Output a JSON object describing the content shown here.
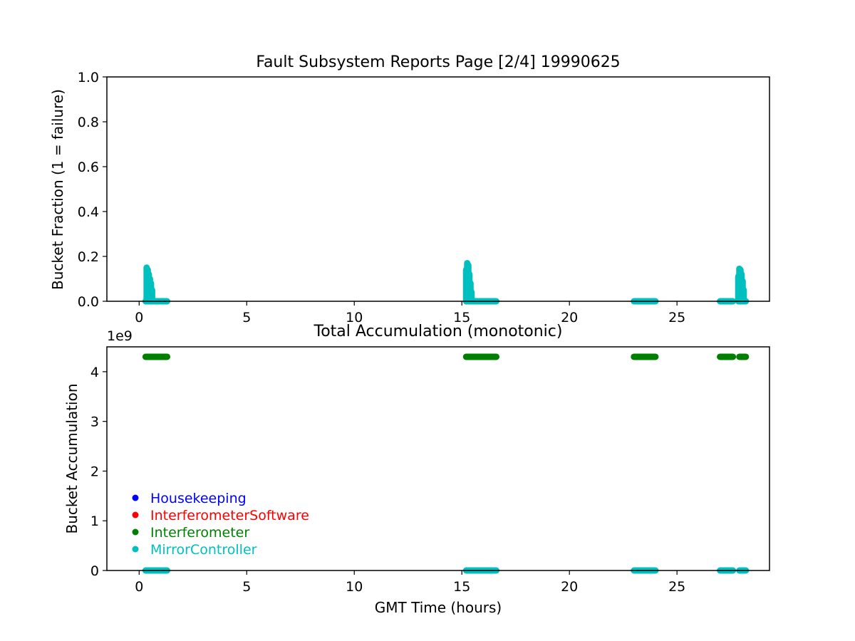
{
  "chart_data": [
    {
      "type": "scatter",
      "title": "Fault Subsystem Reports Page [2/4] 19990625",
      "xlabel": "",
      "ylabel": "Bucket Fraction (1 = failure)",
      "xlim": [
        -1.5,
        29.3
      ],
      "ylim": [
        0,
        1.0
      ],
      "xticks": [
        "0",
        "5",
        "10",
        "15",
        "20",
        "25"
      ],
      "yticks": [
        "0.0",
        "0.2",
        "0.4",
        "0.6",
        "0.8",
        "1.0"
      ],
      "grid": false,
      "series": [
        {
          "name": "MirrorController",
          "color": "#00bfbf",
          "runs": [
            [
              0.3,
              1.3
            ],
            [
              15.2,
              16.6
            ],
            [
              23.0,
              24.0
            ],
            [
              27.0,
              27.6
            ],
            [
              27.9,
              28.2
            ]
          ],
          "spikes": [
            {
              "x": 0.35,
              "y": 0.15
            },
            {
              "x": 0.4,
              "y": 0.14
            },
            {
              "x": 0.45,
              "y": 0.12
            },
            {
              "x": 0.5,
              "y": 0.1
            },
            {
              "x": 0.55,
              "y": 0.08
            },
            {
              "x": 0.6,
              "y": 0.05
            },
            {
              "x": 15.2,
              "y": 0.14
            },
            {
              "x": 15.25,
              "y": 0.17
            },
            {
              "x": 15.3,
              "y": 0.16
            },
            {
              "x": 15.35,
              "y": 0.12
            },
            {
              "x": 15.4,
              "y": 0.08
            },
            {
              "x": 15.45,
              "y": 0.04
            },
            {
              "x": 27.85,
              "y": 0.11
            },
            {
              "x": 27.9,
              "y": 0.145
            },
            {
              "x": 27.95,
              "y": 0.14
            },
            {
              "x": 28.0,
              "y": 0.12
            },
            {
              "x": 28.05,
              "y": 0.09
            },
            {
              "x": 28.1,
              "y": 0.05
            }
          ]
        }
      ]
    },
    {
      "type": "scatter",
      "title": "Total Accumulation (monotonic)",
      "xlabel": "GMT Time (hours)",
      "ylabel": "Bucket Accumulation",
      "offset_text": "1e9",
      "xlim": [
        -1.5,
        29.3
      ],
      "ylim": [
        0,
        4.5
      ],
      "xticks": [
        "0",
        "5",
        "10",
        "15",
        "20",
        "25"
      ],
      "yticks": [
        "0",
        "1",
        "2",
        "3",
        "4"
      ],
      "grid": false,
      "legend_position": "lower-left",
      "series": [
        {
          "name": "Housekeeping",
          "color": "#0000ff",
          "runs": []
        },
        {
          "name": "InterferometerSoftware",
          "color": "#ff0000",
          "runs": []
        },
        {
          "name": "Interferometer",
          "color": "#008000",
          "level": 4.3,
          "runs": [
            [
              0.3,
              1.3
            ],
            [
              15.2,
              16.6
            ],
            [
              23.0,
              24.0
            ],
            [
              27.0,
              27.6
            ],
            [
              27.9,
              28.2
            ]
          ]
        },
        {
          "name": "MirrorController",
          "color": "#00bfbf",
          "level": 0,
          "runs": [
            [
              0.3,
              1.3
            ],
            [
              15.2,
              16.6
            ],
            [
              23.0,
              24.0
            ],
            [
              27.0,
              27.6
            ],
            [
              27.9,
              28.2
            ]
          ]
        }
      ]
    }
  ]
}
